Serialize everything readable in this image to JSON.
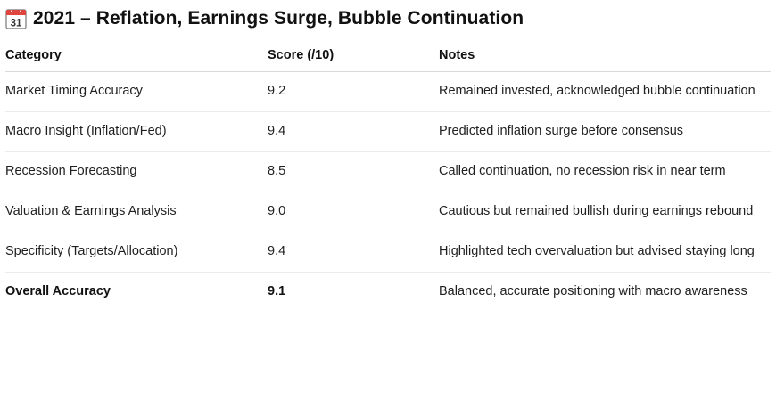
{
  "title": {
    "icon": "calendar-icon",
    "icon_day": "31",
    "text": "2021 – Reflation, Earnings Surge, Bubble Continuation"
  },
  "table": {
    "headers": {
      "category": "Category",
      "score": "Score (/10)",
      "notes": "Notes"
    },
    "rows": [
      {
        "category": "Market Timing Accuracy",
        "score": "9.2",
        "notes": "Remained invested, acknowledged bubble continuation"
      },
      {
        "category": "Macro Insight (Inflation/Fed)",
        "score": "9.4",
        "notes": "Predicted inflation surge before consensus"
      },
      {
        "category": "Recession Forecasting",
        "score": "8.5",
        "notes": "Called continuation, no recession risk in near term"
      },
      {
        "category": "Valuation & Earnings Analysis",
        "score": "9.0",
        "notes": "Cautious but remained bullish during earnings rebound"
      },
      {
        "category": "Specificity (Targets/Allocation)",
        "score": "9.4",
        "notes": "Highlighted tech overvaluation but advised staying long"
      },
      {
        "category": "Overall Accuracy",
        "score": "9.1",
        "notes": "Balanced, accurate positioning with macro awareness"
      }
    ]
  },
  "colors": {
    "calendar_red": "#e0443e",
    "calendar_border": "#8a8a8a",
    "text": "#1f1f1f",
    "divider": "#ececec"
  }
}
